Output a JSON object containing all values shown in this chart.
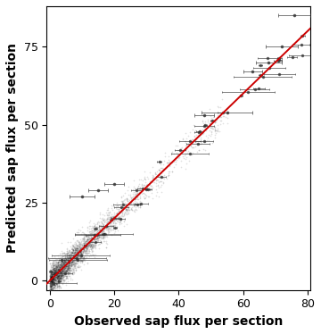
{
  "title": "",
  "xlabel": "Observed sap flux per section",
  "ylabel": "Predicted sap flux per section",
  "xlim": [
    -1,
    81
  ],
  "ylim": [
    -3,
    88
  ],
  "xticks": [
    0,
    20,
    40,
    60,
    80
  ],
  "yticks": [
    0,
    25,
    50,
    75
  ],
  "line_color": "#cc0000",
  "dot_color": "#000000",
  "dot_alpha": 0.12,
  "dot_size": 1.5,
  "errorbar_color": "#333333",
  "background_color": "#ffffff",
  "xlabel_fontsize": 10,
  "ylabel_fontsize": 10,
  "xlabel_fontweight": "bold",
  "ylabel_fontweight": "bold",
  "tick_fontsize": 9,
  "seed": 42
}
